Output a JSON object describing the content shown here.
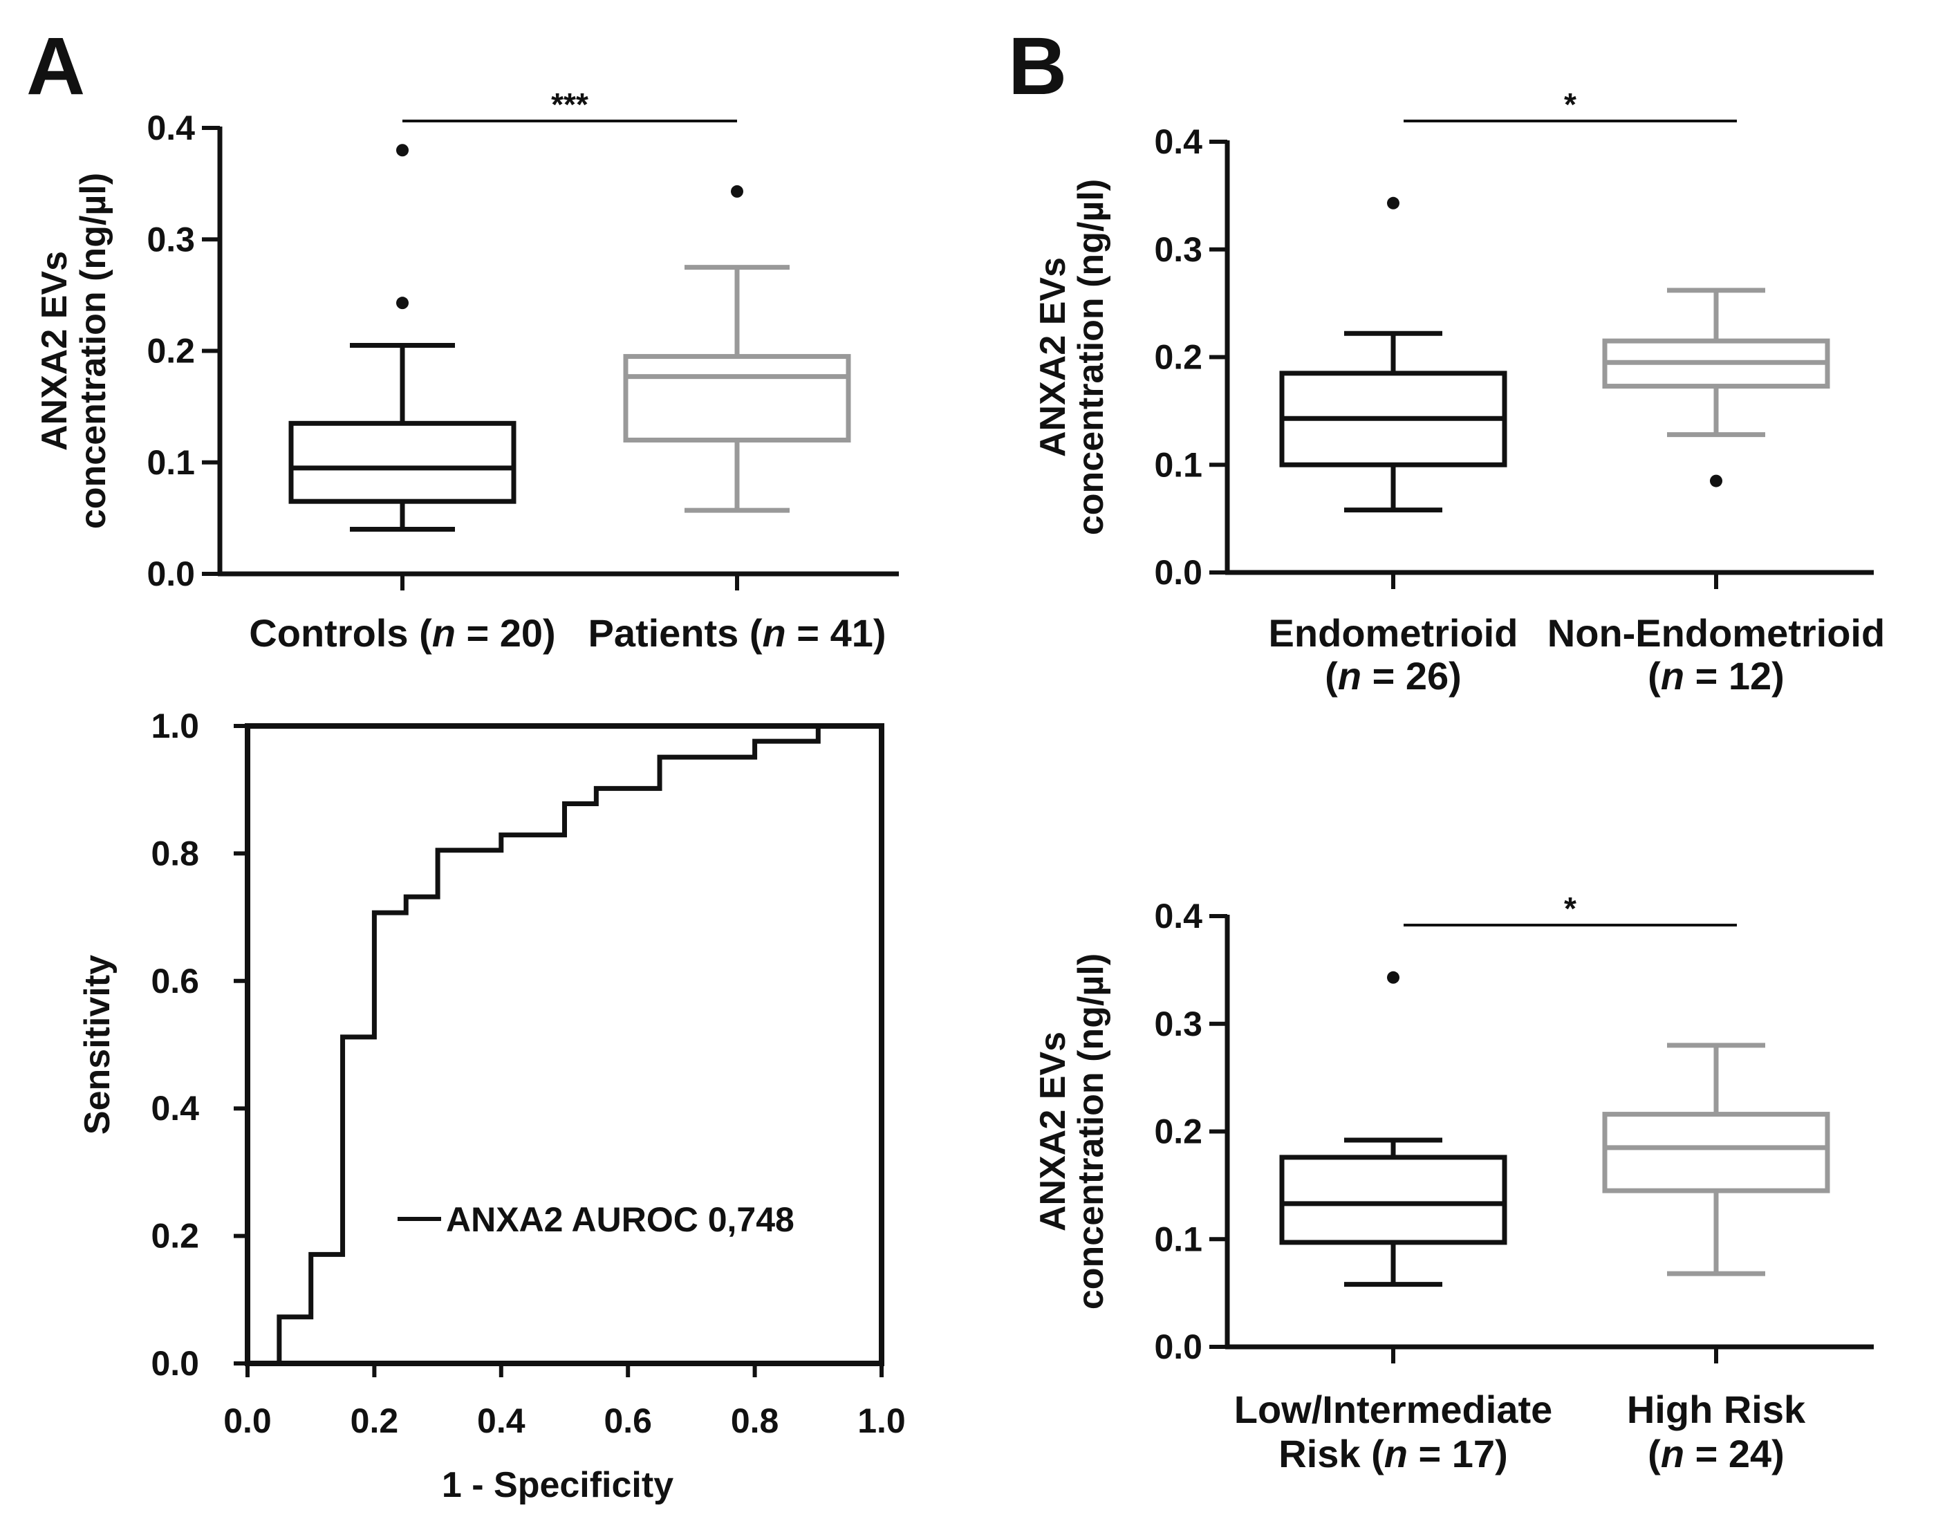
{
  "panels": {
    "A": "A",
    "B": "B"
  },
  "colors": {
    "dark": "#111111",
    "grey": "#999999",
    "background": "#ffffff"
  },
  "chart_data": [
    {
      "id": "a_box",
      "type": "box",
      "ylabel_line1": "ANXA2 EVs",
      "ylabel_line2": "concentration (ng/µl)",
      "ylim": [
        0,
        0.4
      ],
      "yticks": [
        "0.0",
        "0.1",
        "0.2",
        "0.3",
        "0.4"
      ],
      "significance": "***",
      "groups": [
        {
          "lines": [
            {
              "pre": "Controls (",
              "n": "n",
              "post": " = 20)"
            }
          ],
          "color": "#111111",
          "whisker_low": 0.04,
          "q1": 0.065,
          "median": 0.095,
          "q3": 0.135,
          "whisker_high": 0.205,
          "outliers": [
            0.243,
            0.38
          ]
        },
        {
          "lines": [
            {
              "pre": "Patients (",
              "n": "n",
              "post": " = 41)"
            }
          ],
          "color": "#999999",
          "whisker_low": 0.057,
          "q1": 0.12,
          "median": 0.177,
          "q3": 0.195,
          "whisker_high": 0.275,
          "outliers": [
            0.343
          ]
        }
      ]
    },
    {
      "id": "a_roc",
      "type": "line",
      "ylabel": "Sensitivity",
      "xlabel": "1 - Specificity",
      "xlim": [
        0,
        1
      ],
      "ylim": [
        0,
        1
      ],
      "xticks": [
        "0.0",
        "0.2",
        "0.4",
        "0.6",
        "0.8",
        "1.0"
      ],
      "yticks": [
        "0.0",
        "0.2",
        "0.4",
        "0.6",
        "0.8",
        "1.0"
      ],
      "legend": "ANXA2 AUROC 0,748",
      "series": [
        {
          "name": "ANXA2",
          "x": [
            0.0,
            0.05,
            0.05,
            0.1,
            0.1,
            0.15,
            0.15,
            0.2,
            0.2,
            0.25,
            0.25,
            0.3,
            0.3,
            0.4,
            0.4,
            0.5,
            0.5,
            0.55,
            0.55,
            0.65,
            0.65,
            0.8,
            0.8,
            0.9,
            0.9
          ],
          "y": [
            0.0,
            0.0,
            0.073,
            0.073,
            0.171,
            0.171,
            0.512,
            0.512,
            0.707,
            0.707,
            0.732,
            0.732,
            0.805,
            0.805,
            0.829,
            0.829,
            0.878,
            0.878,
            0.902,
            0.902,
            0.951,
            0.951,
            0.976,
            0.976,
            1.0
          ]
        }
      ]
    },
    {
      "id": "b_histology",
      "type": "box",
      "ylabel_line1": "ANXA2 EVs",
      "ylabel_line2": "concentration (ng/µl)",
      "ylim": [
        0,
        0.4
      ],
      "yticks": [
        "0.0",
        "0.1",
        "0.2",
        "0.3",
        "0.4"
      ],
      "significance": "*",
      "groups": [
        {
          "lines": [
            {
              "pre": "Endometrioid",
              "n": "",
              "post": ""
            },
            {
              "pre": "(",
              "n": "n",
              "post": " = 26)"
            }
          ],
          "color": "#111111",
          "whisker_low": 0.058,
          "q1": 0.1,
          "median": 0.143,
          "q3": 0.185,
          "whisker_high": 0.222,
          "outliers": [
            0.343
          ]
        },
        {
          "lines": [
            {
              "pre": "Non-Endometrioid",
              "n": "",
              "post": ""
            },
            {
              "pre": "(",
              "n": "n",
              "post": " = 12)"
            }
          ],
          "color": "#999999",
          "whisker_low": 0.128,
          "q1": 0.173,
          "median": 0.195,
          "q3": 0.215,
          "whisker_high": 0.262,
          "outliers": [
            0.085
          ]
        }
      ]
    },
    {
      "id": "b_risk",
      "type": "box",
      "ylabel_line1": "ANXA2 EVs",
      "ylabel_line2": "concentration (ng/µl)",
      "ylim": [
        0,
        0.4
      ],
      "yticks": [
        "0.0",
        "0.1",
        "0.2",
        "0.3",
        "0.4"
      ],
      "significance": "*",
      "groups": [
        {
          "lines": [
            {
              "pre": "Low/Intermediate",
              "n": "",
              "post": ""
            },
            {
              "pre": "Risk (",
              "n": "n",
              "post": " = 17)"
            }
          ],
          "color": "#111111",
          "whisker_low": 0.058,
          "q1": 0.097,
          "median": 0.133,
          "q3": 0.176,
          "whisker_high": 0.192,
          "outliers": [
            0.343
          ]
        },
        {
          "lines": [
            {
              "pre": "High Risk",
              "n": "",
              "post": ""
            },
            {
              "pre": "(",
              "n": "n",
              "post": " = 24)"
            }
          ],
          "color": "#999999",
          "whisker_low": 0.068,
          "q1": 0.145,
          "median": 0.185,
          "q3": 0.216,
          "whisker_high": 0.28,
          "outliers": []
        }
      ]
    }
  ]
}
